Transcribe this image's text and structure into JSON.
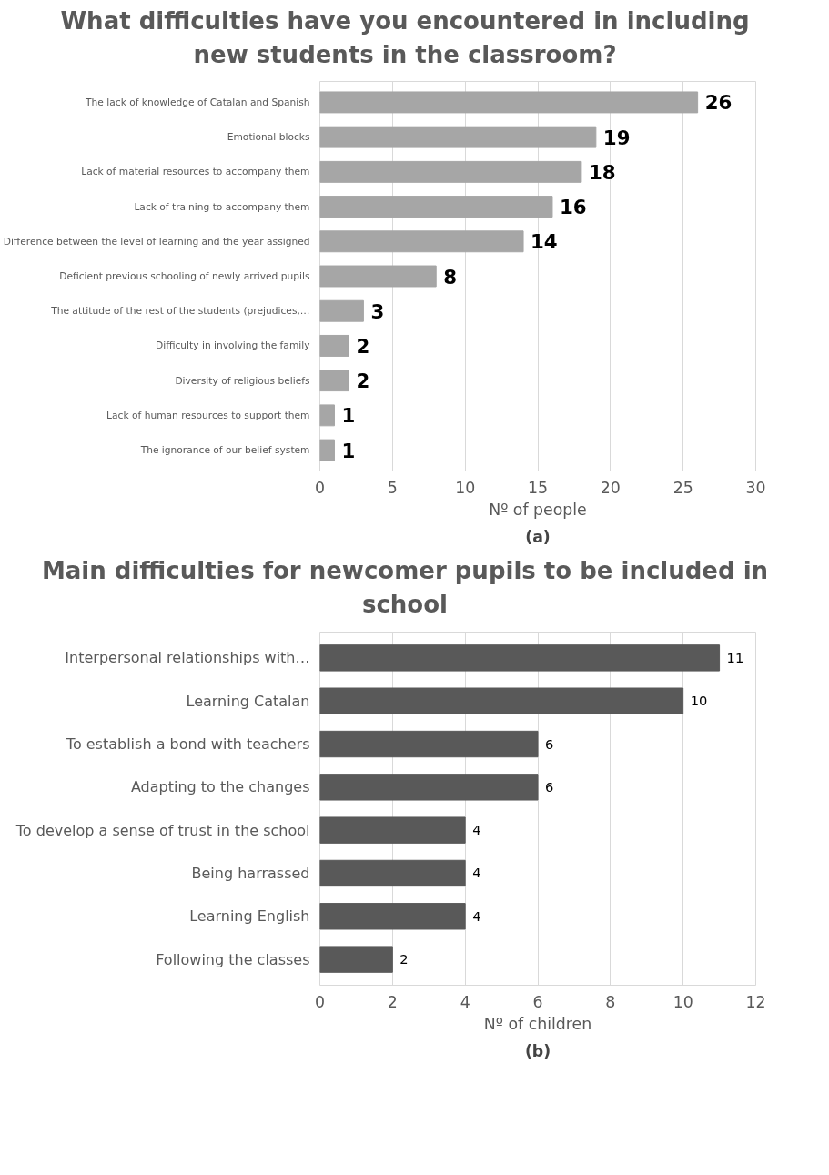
{
  "chart_data": [
    {
      "type": "bar",
      "orientation": "horizontal",
      "title": "What difficulties have you encountered in including new students in the classroom?",
      "xlabel": "Nº of people",
      "categories": [
        "The lack of knowledge of Catalan and Spanish",
        "Emotional blocks",
        "Lack of material resources to accompany them",
        "Lack of training to accompany them",
        "Difference between the level of learning and the year assigned",
        "Deficient previous schooling of newly arrived pupils",
        "The attitude of the rest of the students (prejudices,…",
        "Difficulty in involving the family",
        "Diversity of religious beliefs",
        "Lack of human resources to support them",
        "The ignorance of our belief system"
      ],
      "values": [
        26,
        19,
        18,
        16,
        14,
        8,
        3,
        2,
        2,
        1,
        1
      ],
      "color": "#a6a6a6",
      "xlim": [
        0,
        30
      ],
      "xticks": [
        0,
        5,
        10,
        15,
        20,
        25,
        30
      ],
      "grid": "x",
      "data_labels": true,
      "annotations": [
        "(a)"
      ]
    },
    {
      "type": "bar",
      "orientation": "horizontal",
      "title": "Main difficulties for newcomer pupils to be included in school",
      "xlabel": "Nº of children",
      "categories": [
        "Interpersonal relationships with…",
        "Learning Catalan",
        "To establish a bond with teachers",
        "Adapting to the changes",
        "To develop a sense of trust in the school",
        "Being harrassed",
        "Learning English",
        "Following the classes"
      ],
      "values": [
        11,
        10,
        6,
        6,
        4,
        4,
        4,
        2
      ],
      "color": "#595959",
      "xlim": [
        0,
        12
      ],
      "xticks": [
        0,
        2,
        4,
        6,
        8,
        10,
        12
      ],
      "grid": "x",
      "data_labels": true,
      "annotations": [
        "(b)"
      ]
    }
  ]
}
